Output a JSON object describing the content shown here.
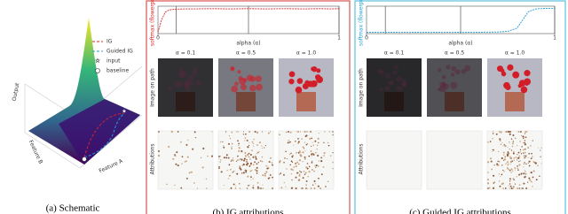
{
  "schematic": {
    "axis_labels": {
      "z": "Output",
      "y": "Feature B",
      "x": "Feature A"
    },
    "legend": [
      "IG",
      "Guided IG",
      "input",
      "baseline"
    ],
    "caption": "(a) Schematic"
  },
  "panels": [
    {
      "caption": "(b) IG attributions",
      "border": "#d9534f",
      "plot": {
        "ylabel": "softmax (flowerpot)",
        "xlabel": "alpha (α)",
        "xlim": [
          0,
          1
        ],
        "ylim": [
          0,
          1
        ],
        "xticks": [
          0,
          1
        ],
        "markers": [
          0.1,
          0.5,
          1.0
        ],
        "color": "#d62728",
        "x": [
          0,
          0.02,
          0.04,
          0.06,
          0.08,
          0.1,
          0.15,
          0.2,
          0.3,
          0.4,
          0.5,
          0.6,
          0.7,
          0.8,
          0.9,
          0.95,
          1.0
        ],
        "values": [
          0.05,
          0.5,
          0.78,
          0.86,
          0.88,
          0.89,
          0.9,
          0.9,
          0.91,
          0.9,
          0.91,
          0.9,
          0.91,
          0.9,
          0.91,
          0.9,
          0.91
        ]
      },
      "alphas": [
        "α = 0.1",
        "α = 0.5",
        "α = 1.0"
      ],
      "row_labels": [
        "Image on path",
        "Attributions"
      ]
    },
    {
      "caption": "(c) Guided IG attributions",
      "border": "#5bc0de",
      "plot": {
        "ylabel": "softmax (flowerpot)",
        "xlabel": "alpha (α)",
        "xlim": [
          0,
          1
        ],
        "ylim": [
          0,
          1
        ],
        "xticks": [
          0,
          1
        ],
        "markers": [
          0.1,
          0.5,
          1.0
        ],
        "color": "#1f9fd6",
        "x": [
          0,
          0.1,
          0.2,
          0.3,
          0.4,
          0.5,
          0.6,
          0.7,
          0.75,
          0.8,
          0.83,
          0.86,
          0.9,
          0.95,
          1.0
        ],
        "values": [
          0.05,
          0.05,
          0.05,
          0.05,
          0.05,
          0.05,
          0.05,
          0.06,
          0.08,
          0.2,
          0.5,
          0.8,
          0.9,
          0.92,
          0.92
        ]
      },
      "alphas": [
        "α = 0.1",
        "α = 0.5",
        "α = 1.0"
      ],
      "row_labels": [
        "Image on path",
        "Attributions"
      ]
    }
  ]
}
